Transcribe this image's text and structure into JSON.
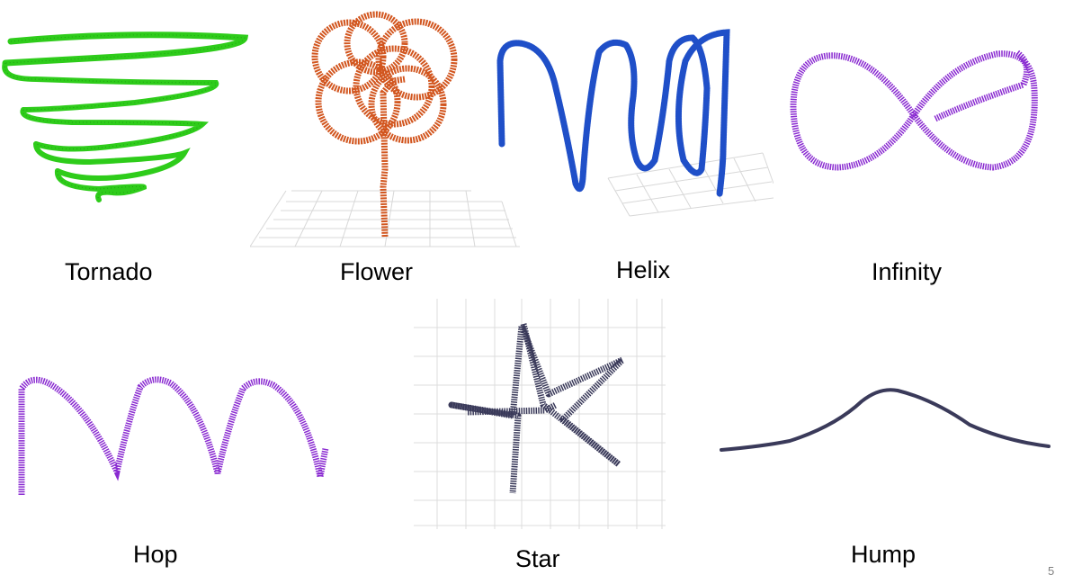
{
  "slide": {
    "page_number": "5",
    "trajectories": [
      {
        "id": "tornado",
        "label": "Tornado",
        "color": "#2ecc1a"
      },
      {
        "id": "flower",
        "label": "Flower",
        "color": "#d2561f"
      },
      {
        "id": "helix",
        "label": "Helix",
        "color": "#1f4fc8"
      },
      {
        "id": "infinity",
        "label": "Infinity",
        "color": "#8a2bd1"
      },
      {
        "id": "hop",
        "label": "Hop",
        "color": "#8a2bd1"
      },
      {
        "id": "star",
        "label": "Star",
        "color": "#3a3a5a"
      },
      {
        "id": "hump",
        "label": "Hump",
        "color": "#3a3a5a"
      }
    ]
  }
}
